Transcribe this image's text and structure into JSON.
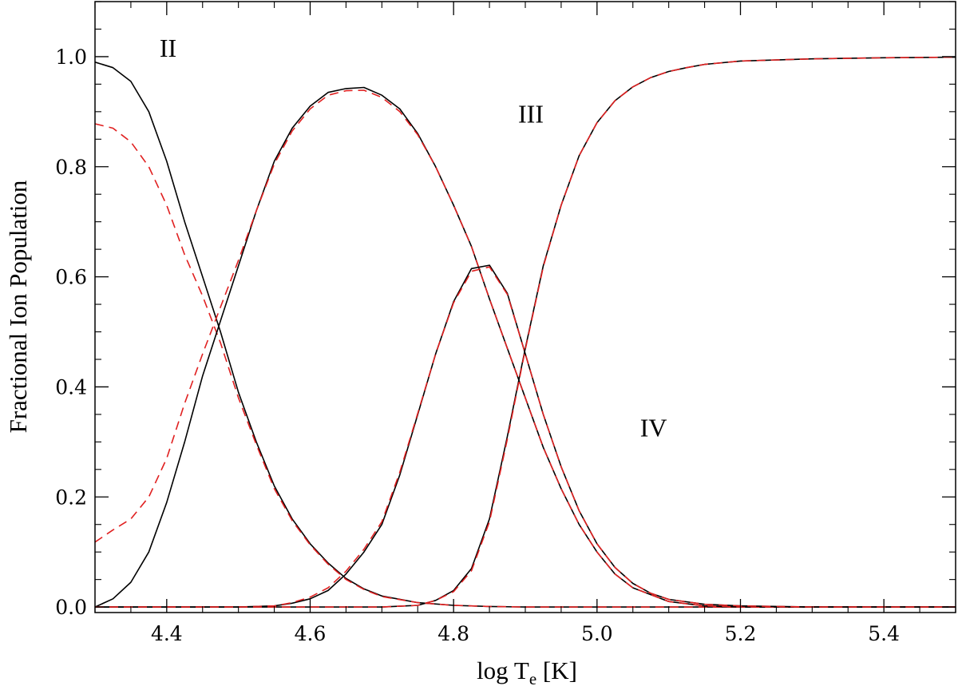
{
  "chart_data": {
    "type": "line",
    "xlabel": "log T",
    "xlabel_sub": "e",
    "xlabel_unit": " [K]",
    "ylabel": "Fractional Ion Population",
    "xlim": [
      4.3,
      5.5
    ],
    "ylim": [
      -0.01,
      1.1
    ],
    "xticks": [
      4.4,
      4.6,
      4.8,
      5.0,
      5.2,
      5.4
    ],
    "xtick_labels": [
      "4.4",
      "4.6",
      "4.8",
      "5.0",
      "5.2",
      "5.4"
    ],
    "yticks": [
      0.0,
      0.2,
      0.4,
      0.6,
      0.8,
      1.0
    ],
    "ytick_labels": [
      "0.0",
      "0.2",
      "0.4",
      "0.6",
      "0.8",
      "1.0"
    ],
    "grid": false,
    "legend": "none",
    "annotations": [
      {
        "text": "II",
        "x": 4.39,
        "y": 1.0
      },
      {
        "text": "III",
        "x": 4.89,
        "y": 0.88
      },
      {
        "text": "IV",
        "x": 5.06,
        "y": 0.31
      }
    ],
    "series": [
      {
        "style": "solid",
        "color": "#000000",
        "points": [
          [
            4.3,
            0.99
          ],
          [
            4.325,
            0.98
          ],
          [
            4.35,
            0.955
          ],
          [
            4.375,
            0.9
          ],
          [
            4.4,
            0.81
          ],
          [
            4.425,
            0.7
          ],
          [
            4.45,
            0.6
          ],
          [
            4.475,
            0.5
          ],
          [
            4.5,
            0.39
          ],
          [
            4.525,
            0.3
          ],
          [
            4.55,
            0.22
          ],
          [
            4.575,
            0.16
          ],
          [
            4.6,
            0.115
          ],
          [
            4.625,
            0.08
          ],
          [
            4.65,
            0.052
          ],
          [
            4.675,
            0.033
          ],
          [
            4.7,
            0.02
          ],
          [
            4.75,
            0.008
          ],
          [
            4.8,
            0.003
          ],
          [
            4.85,
            0.001
          ],
          [
            4.9,
            0.0
          ],
          [
            5.0,
            0.0
          ],
          [
            5.5,
            0.0
          ]
        ]
      },
      {
        "style": "dashed",
        "color": "#e02020",
        "points": [
          [
            4.3,
            0.878
          ],
          [
            4.325,
            0.87
          ],
          [
            4.35,
            0.845
          ],
          [
            4.375,
            0.8
          ],
          [
            4.4,
            0.73
          ],
          [
            4.425,
            0.64
          ],
          [
            4.45,
            0.565
          ],
          [
            4.475,
            0.48
          ],
          [
            4.5,
            0.38
          ],
          [
            4.525,
            0.295
          ],
          [
            4.55,
            0.215
          ],
          [
            4.575,
            0.157
          ],
          [
            4.6,
            0.113
          ],
          [
            4.625,
            0.078
          ],
          [
            4.65,
            0.05
          ],
          [
            4.675,
            0.032
          ],
          [
            4.7,
            0.019
          ],
          [
            4.75,
            0.008
          ],
          [
            4.8,
            0.003
          ],
          [
            4.85,
            0.001
          ],
          [
            4.9,
            0.0
          ],
          [
            5.0,
            0.0
          ],
          [
            5.5,
            0.0
          ]
        ]
      },
      {
        "style": "solid",
        "color": "#000000",
        "points": [
          [
            4.3,
            0.0
          ],
          [
            4.325,
            0.015
          ],
          [
            4.35,
            0.045
          ],
          [
            4.375,
            0.1
          ],
          [
            4.4,
            0.19
          ],
          [
            4.425,
            0.3
          ],
          [
            4.45,
            0.42
          ],
          [
            4.475,
            0.52
          ],
          [
            4.5,
            0.62
          ],
          [
            4.525,
            0.72
          ],
          [
            4.55,
            0.81
          ],
          [
            4.575,
            0.87
          ],
          [
            4.6,
            0.91
          ],
          [
            4.625,
            0.935
          ],
          [
            4.65,
            0.942
          ],
          [
            4.675,
            0.944
          ],
          [
            4.7,
            0.93
          ],
          [
            4.725,
            0.905
          ],
          [
            4.75,
            0.86
          ],
          [
            4.775,
            0.8
          ],
          [
            4.8,
            0.73
          ],
          [
            4.825,
            0.655
          ],
          [
            4.85,
            0.56
          ],
          [
            4.875,
            0.47
          ],
          [
            4.9,
            0.38
          ],
          [
            4.925,
            0.29
          ],
          [
            4.95,
            0.215
          ],
          [
            4.975,
            0.15
          ],
          [
            5.0,
            0.1
          ],
          [
            5.025,
            0.06
          ],
          [
            5.05,
            0.035
          ],
          [
            5.1,
            0.01
          ],
          [
            5.15,
            0.002
          ],
          [
            5.2,
            0.0
          ],
          [
            5.5,
            0.0
          ]
        ]
      },
      {
        "style": "dashed",
        "color": "#e02020",
        "points": [
          [
            4.3,
            0.118
          ],
          [
            4.325,
            0.14
          ],
          [
            4.35,
            0.16
          ],
          [
            4.375,
            0.2
          ],
          [
            4.4,
            0.27
          ],
          [
            4.425,
            0.37
          ],
          [
            4.45,
            0.46
          ],
          [
            4.475,
            0.545
          ],
          [
            4.5,
            0.63
          ],
          [
            4.525,
            0.72
          ],
          [
            4.55,
            0.805
          ],
          [
            4.575,
            0.865
          ],
          [
            4.6,
            0.905
          ],
          [
            4.625,
            0.93
          ],
          [
            4.65,
            0.938
          ],
          [
            4.675,
            0.939
          ],
          [
            4.7,
            0.926
          ],
          [
            4.725,
            0.9
          ],
          [
            4.75,
            0.858
          ],
          [
            4.775,
            0.8
          ],
          [
            4.8,
            0.73
          ],
          [
            4.825,
            0.655
          ],
          [
            4.85,
            0.56
          ],
          [
            4.875,
            0.47
          ],
          [
            4.9,
            0.38
          ],
          [
            4.925,
            0.29
          ],
          [
            4.95,
            0.215
          ],
          [
            4.975,
            0.15
          ],
          [
            5.0,
            0.1
          ],
          [
            5.025,
            0.06
          ],
          [
            5.05,
            0.035
          ],
          [
            5.1,
            0.01
          ],
          [
            5.15,
            0.002
          ],
          [
            5.2,
            0.0
          ],
          [
            5.5,
            0.0
          ]
        ]
      },
      {
        "style": "solid",
        "color": "#000000",
        "points": [
          [
            4.3,
            0.0
          ],
          [
            4.5,
            0.0
          ],
          [
            4.55,
            0.002
          ],
          [
            4.575,
            0.007
          ],
          [
            4.6,
            0.015
          ],
          [
            4.625,
            0.03
          ],
          [
            4.65,
            0.06
          ],
          [
            4.675,
            0.1
          ],
          [
            4.7,
            0.15
          ],
          [
            4.725,
            0.24
          ],
          [
            4.75,
            0.35
          ],
          [
            4.775,
            0.46
          ],
          [
            4.8,
            0.555
          ],
          [
            4.825,
            0.615
          ],
          [
            4.85,
            0.621
          ],
          [
            4.875,
            0.57
          ],
          [
            4.9,
            0.46
          ],
          [
            4.925,
            0.35
          ],
          [
            4.95,
            0.255
          ],
          [
            4.975,
            0.175
          ],
          [
            5.0,
            0.115
          ],
          [
            5.025,
            0.072
          ],
          [
            5.05,
            0.043
          ],
          [
            5.075,
            0.025
          ],
          [
            5.1,
            0.014
          ],
          [
            5.15,
            0.005
          ],
          [
            5.2,
            0.002
          ],
          [
            5.3,
            0.0
          ],
          [
            5.5,
            0.0
          ]
        ]
      },
      {
        "style": "dashed",
        "color": "#e02020",
        "points": [
          [
            4.3,
            0.0
          ],
          [
            4.5,
            0.0
          ],
          [
            4.55,
            0.002
          ],
          [
            4.575,
            0.008
          ],
          [
            4.6,
            0.018
          ],
          [
            4.625,
            0.035
          ],
          [
            4.65,
            0.065
          ],
          [
            4.675,
            0.105
          ],
          [
            4.7,
            0.155
          ],
          [
            4.725,
            0.245
          ],
          [
            4.75,
            0.352
          ],
          [
            4.775,
            0.46
          ],
          [
            4.8,
            0.553
          ],
          [
            4.825,
            0.61
          ],
          [
            4.85,
            0.618
          ],
          [
            4.875,
            0.568
          ],
          [
            4.9,
            0.46
          ],
          [
            4.925,
            0.35
          ],
          [
            4.95,
            0.255
          ],
          [
            4.975,
            0.175
          ],
          [
            5.0,
            0.115
          ],
          [
            5.025,
            0.072
          ],
          [
            5.05,
            0.043
          ],
          [
            5.075,
            0.025
          ],
          [
            5.1,
            0.014
          ],
          [
            5.15,
            0.005
          ],
          [
            5.2,
            0.002
          ],
          [
            5.3,
            0.0
          ],
          [
            5.5,
            0.0
          ]
        ]
      },
      {
        "style": "solid",
        "color": "#000000",
        "points": [
          [
            4.3,
            0.0
          ],
          [
            4.7,
            0.0
          ],
          [
            4.75,
            0.003
          ],
          [
            4.775,
            0.012
          ],
          [
            4.8,
            0.03
          ],
          [
            4.825,
            0.07
          ],
          [
            4.85,
            0.16
          ],
          [
            4.875,
            0.31
          ],
          [
            4.9,
            0.47
          ],
          [
            4.925,
            0.62
          ],
          [
            4.95,
            0.73
          ],
          [
            4.975,
            0.82
          ],
          [
            5.0,
            0.88
          ],
          [
            5.025,
            0.92
          ],
          [
            5.05,
            0.945
          ],
          [
            5.075,
            0.962
          ],
          [
            5.1,
            0.973
          ],
          [
            5.125,
            0.98
          ],
          [
            5.15,
            0.986
          ],
          [
            5.2,
            0.992
          ],
          [
            5.3,
            0.996
          ],
          [
            5.4,
            0.998
          ],
          [
            5.5,
            0.999
          ]
        ]
      },
      {
        "style": "dashed",
        "color": "#e02020",
        "points": [
          [
            4.3,
            0.0
          ],
          [
            4.7,
            0.0
          ],
          [
            4.75,
            0.003
          ],
          [
            4.775,
            0.012
          ],
          [
            4.8,
            0.028
          ],
          [
            4.825,
            0.066
          ],
          [
            4.85,
            0.155
          ],
          [
            4.875,
            0.305
          ],
          [
            4.9,
            0.468
          ],
          [
            4.925,
            0.618
          ],
          [
            4.95,
            0.73
          ],
          [
            4.975,
            0.82
          ],
          [
            5.0,
            0.88
          ],
          [
            5.025,
            0.92
          ],
          [
            5.05,
            0.945
          ],
          [
            5.075,
            0.962
          ],
          [
            5.1,
            0.973
          ],
          [
            5.125,
            0.98
          ],
          [
            5.15,
            0.986
          ],
          [
            5.2,
            0.992
          ],
          [
            5.3,
            0.996
          ],
          [
            5.4,
            0.998
          ],
          [
            5.5,
            0.999
          ]
        ]
      }
    ]
  }
}
